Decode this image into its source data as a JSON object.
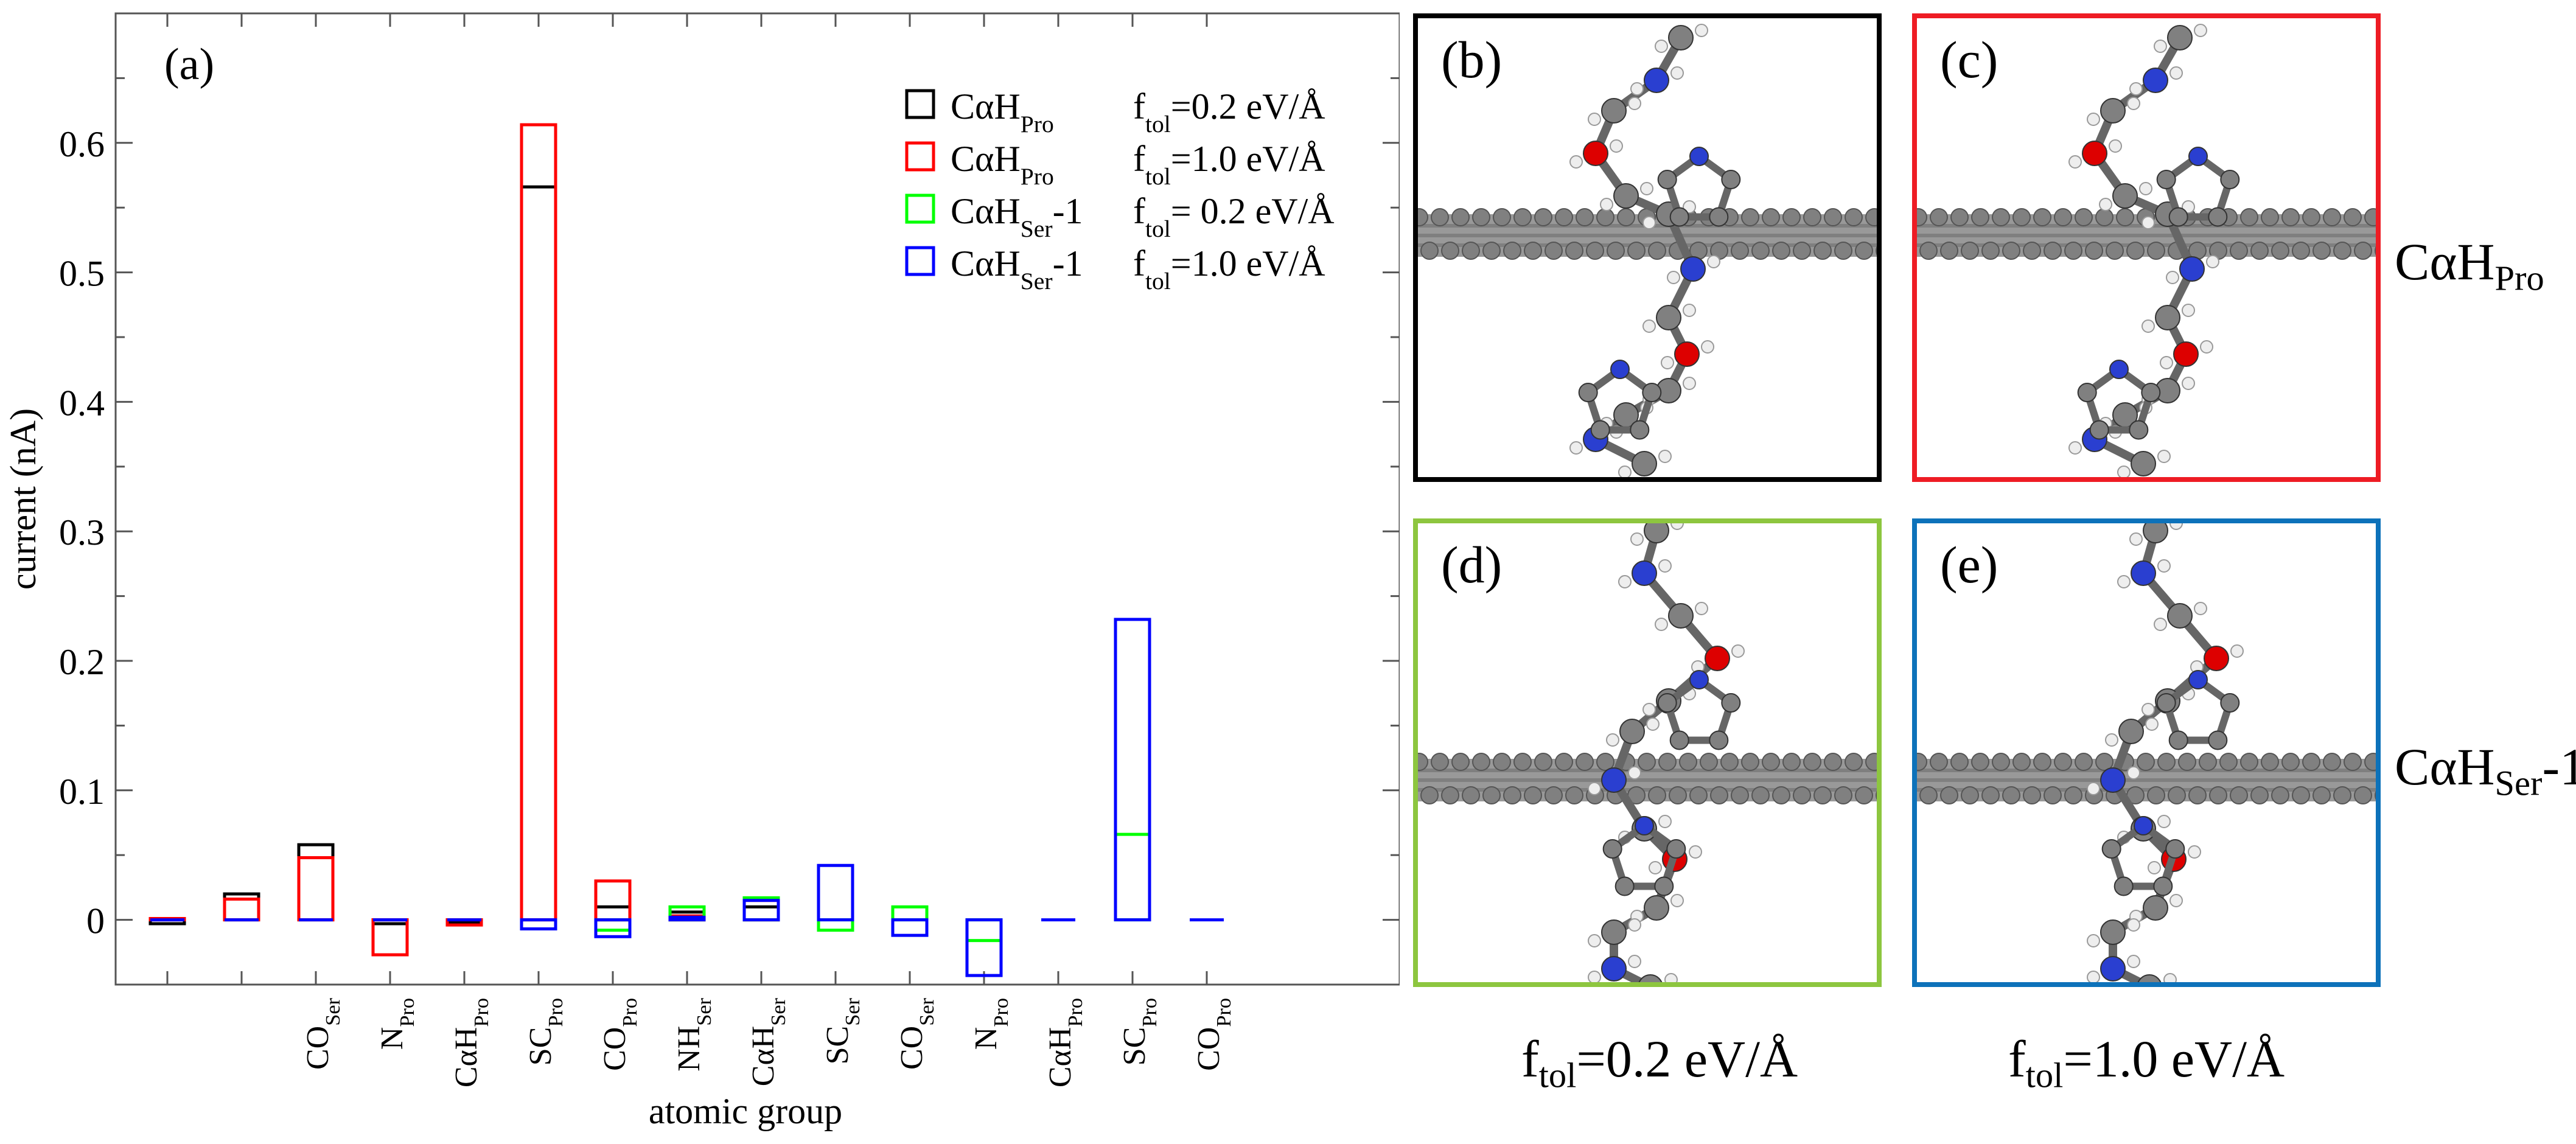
{
  "chart_data": {
    "type": "floating-bar",
    "panel_label": "(a)",
    "xlabel": "atomic group",
    "ylabel": "current (nA)",
    "ylim": [
      -0.05,
      0.7
    ],
    "yticks": [
      "0",
      "0.1",
      "0.2",
      "0.3",
      "0.4",
      "0.5",
      "0.6"
    ],
    "categories": [
      {
        "main": "",
        "sub": ""
      },
      {
        "main": "",
        "sub": ""
      },
      {
        "main": "CO",
        "sub": "Ser"
      },
      {
        "main": "N",
        "sub": "Pro"
      },
      {
        "main": "CαH",
        "sub": "Pro"
      },
      {
        "main": "SC",
        "sub": "Pro"
      },
      {
        "main": "CO",
        "sub": "Pro"
      },
      {
        "main": "NH",
        "sub": "Ser"
      },
      {
        "main": "CαH",
        "sub": "Ser"
      },
      {
        "main": "SC",
        "sub": "Ser"
      },
      {
        "main": "CO",
        "sub": "Ser"
      },
      {
        "main": "N",
        "sub": "Pro"
      },
      {
        "main": "CαH",
        "sub": "Pro"
      },
      {
        "main": "SC",
        "sub": "Pro"
      },
      {
        "main": "CO",
        "sub": "Pro"
      }
    ],
    "series": [
      {
        "name": "CαH_Pro f_tol=0.2 eV/Å",
        "color": "#000000",
        "values": [
          -0.003,
          0.02,
          0.058,
          -0.003,
          -0.002,
          0.566,
          0.01,
          0.006,
          0.01,
          0.0,
          0.0,
          0.0,
          0.0,
          0.0,
          0.0
        ]
      },
      {
        "name": "CαH_Pro f_tol=1.0 eV/Å",
        "color": "#ff0000",
        "values": [
          0.001,
          0.016,
          0.048,
          -0.027,
          -0.004,
          0.614,
          0.03,
          0.003,
          0.015,
          0.0,
          0.0,
          0.0,
          0.0,
          0.0,
          0.0
        ]
      },
      {
        "name": "CαH_Ser-1 f_tol= 0.2 eV/Å",
        "color": "#00ff00",
        "values": [
          0.0,
          0.0,
          0.0,
          0.0,
          0.0,
          0.0,
          -0.008,
          0.01,
          0.017,
          -0.008,
          0.01,
          -0.016,
          0.0,
          0.066,
          0.0
        ]
      },
      {
        "name": "CαH_Ser-1 f_tol=1.0 eV/Å",
        "color": "#0000ff",
        "values": [
          0.0,
          0.0,
          0.0,
          0.0,
          0.0,
          -0.007,
          -0.013,
          0.002,
          0.015,
          0.042,
          -0.012,
          -0.043,
          0.0,
          0.232,
          0.0
        ]
      }
    ],
    "legend": {
      "position": "top-right",
      "entries": [
        {
          "color": "#000000",
          "mol": "CαH",
          "mol_sub": "Pro",
          "ftol": "=0.2 eV/Å"
        },
        {
          "color": "#ff0000",
          "mol": "CαH",
          "mol_sub": "Pro",
          "ftol": "=1.0 eV/Å"
        },
        {
          "color": "#00ff00",
          "mol": "CαH",
          "mol_sub": "Ser",
          "mol_suffix": "-1",
          "ftol": "= 0.2 eV/Å"
        },
        {
          "color": "#0000ff",
          "mol": "CαH",
          "mol_sub": "Ser",
          "mol_suffix": "-1",
          "ftol": "=1.0 eV/Å"
        }
      ]
    }
  },
  "panels": [
    {
      "label": "(b)",
      "border": "#000000"
    },
    {
      "label": "(c)",
      "border": "#ee1c24"
    },
    {
      "label": "(d)",
      "border": "#8dc63f"
    },
    {
      "label": "(e)",
      "border": "#0d72ba"
    }
  ],
  "row_labels": [
    {
      "main": "CαH",
      "sub": "Pro",
      "suffix": ""
    },
    {
      "main": "CαH",
      "sub": "Ser",
      "suffix": "-1"
    }
  ],
  "col_labels": [
    {
      "main": "f",
      "sub": "tol",
      "value": "=0.2 eV/Å"
    },
    {
      "main": "f",
      "sub": "tol",
      "value": "=1.0 eV/Å"
    }
  ]
}
